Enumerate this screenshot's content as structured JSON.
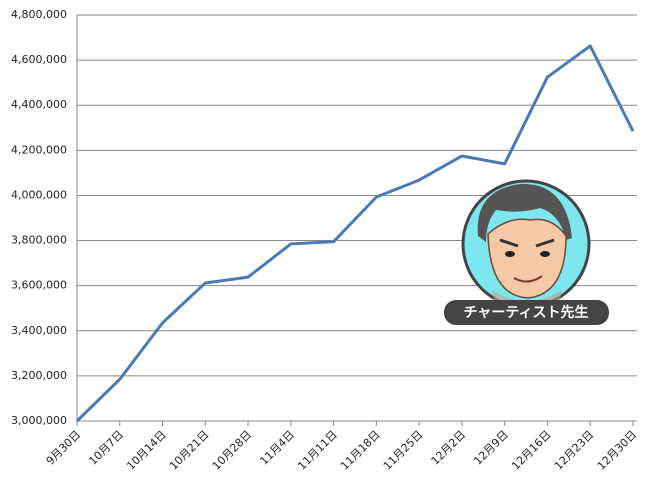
{
  "chart_data": {
    "type": "line",
    "categories": [
      "9月30日",
      "10月7日",
      "10月14日",
      "10月21日",
      "10月28日",
      "11月4日",
      "11月11日",
      "11月18日",
      "11月25日",
      "12月2日",
      "12月9日",
      "12月16日",
      "12月23日",
      "12月30日"
    ],
    "series": [
      {
        "color": "#4a7ab4",
        "values": [
          3000000,
          3185000,
          3435000,
          3612000,
          3638000,
          3785000,
          3795000,
          3993000,
          4068000,
          4175000,
          4140000,
          4525000,
          4663000,
          4285000
        ]
      }
    ],
    "ylim": [
      3000000,
      4800000
    ],
    "yticks": [
      {
        "value": 3000000,
        "label": "3,000,000"
      },
      {
        "value": 3200000,
        "label": "3,200,000"
      },
      {
        "value": 3400000,
        "label": "3,400,000"
      },
      {
        "value": 3600000,
        "label": "3,600,000"
      },
      {
        "value": 3800000,
        "label": "3,800,000"
      },
      {
        "value": 4000000,
        "label": "4,000,000"
      },
      {
        "value": 4200000,
        "label": "4,200,000"
      },
      {
        "value": 4400000,
        "label": "4,400,000"
      },
      {
        "value": 4600000,
        "label": "4,600,000"
      },
      {
        "value": 4800000,
        "label": "4,800,000"
      }
    ],
    "grid": true
  },
  "avatar": {
    "label": "チャーティスト先生"
  }
}
